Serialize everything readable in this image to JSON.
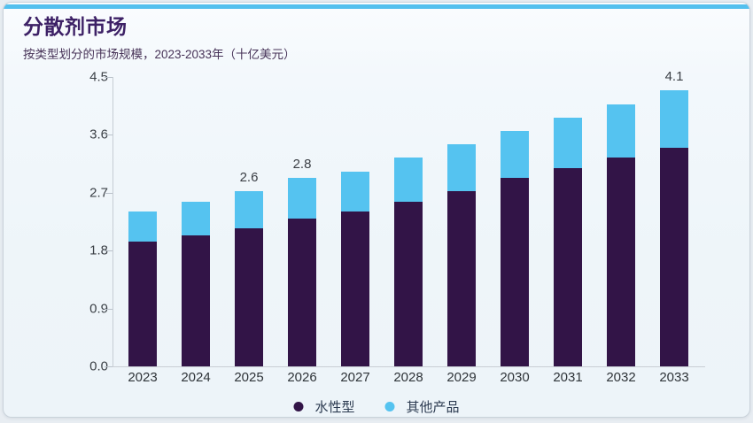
{
  "card": {
    "title": "分散剂市场",
    "subtitle": "按类型划分的市场规模，2023-2033年（十亿美元）"
  },
  "colors": {
    "accent_strip": "#53c0ee",
    "title_text": "#3d2166",
    "water_based": "#321447",
    "others": "#55c3f0"
  },
  "chart_data": {
    "type": "bar",
    "stacked": true,
    "title": "分散剂市场",
    "subtitle": "按类型划分的市场规模，2023-2033年（十亿美元）",
    "categories": [
      "2023",
      "2024",
      "2025",
      "2026",
      "2027",
      "2028",
      "2029",
      "2030",
      "2031",
      "2032",
      "2033"
    ],
    "series": [
      {
        "name": "水性型",
        "color": "#321447",
        "values": [
          1.85,
          1.95,
          2.05,
          2.2,
          2.3,
          2.45,
          2.6,
          2.8,
          2.95,
          3.1,
          3.25
        ]
      },
      {
        "name": "其他产品",
        "color": "#55c3f0",
        "values": [
          0.45,
          0.5,
          0.55,
          0.6,
          0.6,
          0.65,
          0.7,
          0.7,
          0.75,
          0.8,
          0.85
        ]
      }
    ],
    "totals": [
      2.3,
      2.45,
      2.6,
      2.8,
      2.9,
      3.1,
      3.3,
      3.5,
      3.7,
      3.9,
      4.1
    ],
    "point_labels": {
      "2025": "2.6",
      "2026": "2.8",
      "2033": "4.1"
    },
    "xlabel": "",
    "ylabel": "",
    "ylim": [
      0,
      4.5
    ],
    "y_ticks": [
      "0.0",
      "0.9",
      "1.8",
      "2.7",
      "3.6",
      "4.5"
    ],
    "grid": false,
    "legend_position": "bottom"
  }
}
